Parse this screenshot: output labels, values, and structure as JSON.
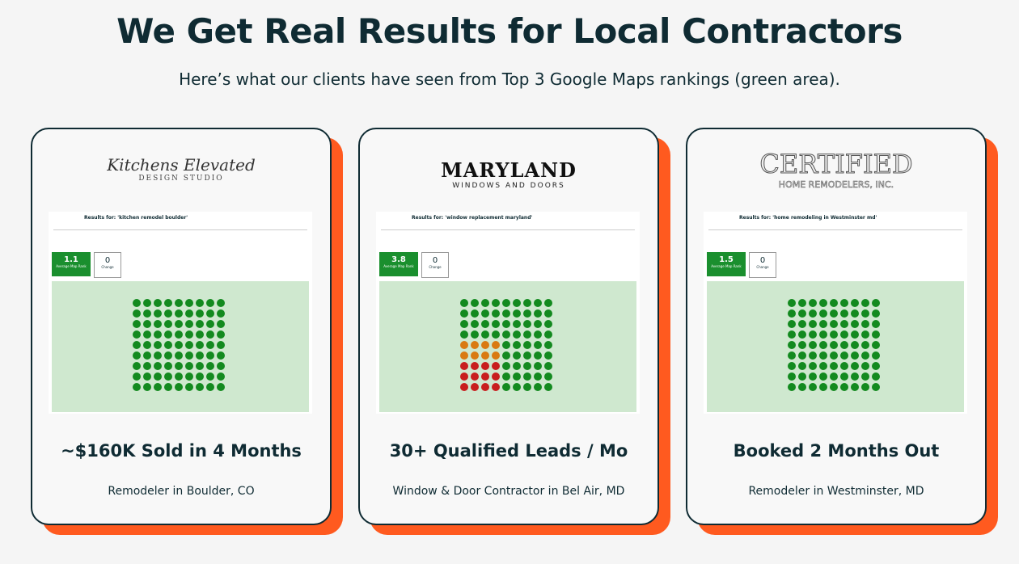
{
  "header": {
    "title": "We Get Real Results for Local Contractors",
    "subtitle": "Here’s what our clients have seen from Top 3 Google Maps rankings (green area)."
  },
  "cards": [
    {
      "logo": {
        "line1": "Kitchens Elevated",
        "line2": "DESIGN STUDIO"
      },
      "screenshot": {
        "query": "Results for: 'kitchen remodel boulder'",
        "rank": "1.1",
        "rank_label": "Average Map Rank",
        "change": "0",
        "change_label": "Change"
      },
      "headline": "~$160K Sold in 4 Months",
      "location": "Remodeler in Boulder, CO"
    },
    {
      "logo": {
        "line1": "MARYLAND",
        "line2": "WINDOWS AND DOORS"
      },
      "screenshot": {
        "query": "Results for: 'window replacement maryland'",
        "rank": "3.8",
        "rank_label": "Average Map Rank",
        "change": "0",
        "change_label": "Change"
      },
      "headline": "30+ Qualified Leads / Mo",
      "location": "Window & Door Contractor in Bel Air, MD"
    },
    {
      "logo": {
        "line1": "CERTIFIED",
        "line2": "HOME REMODELERS, INC."
      },
      "screenshot": {
        "query": "Results for: 'home remodeling in Westminster md'",
        "rank": "1.5",
        "rank_label": "Average Map Rank",
        "change": "0",
        "change_label": "Change"
      },
      "headline": "Booked 2 Months Out",
      "location": "Remodeler in Westminster, MD"
    }
  ]
}
